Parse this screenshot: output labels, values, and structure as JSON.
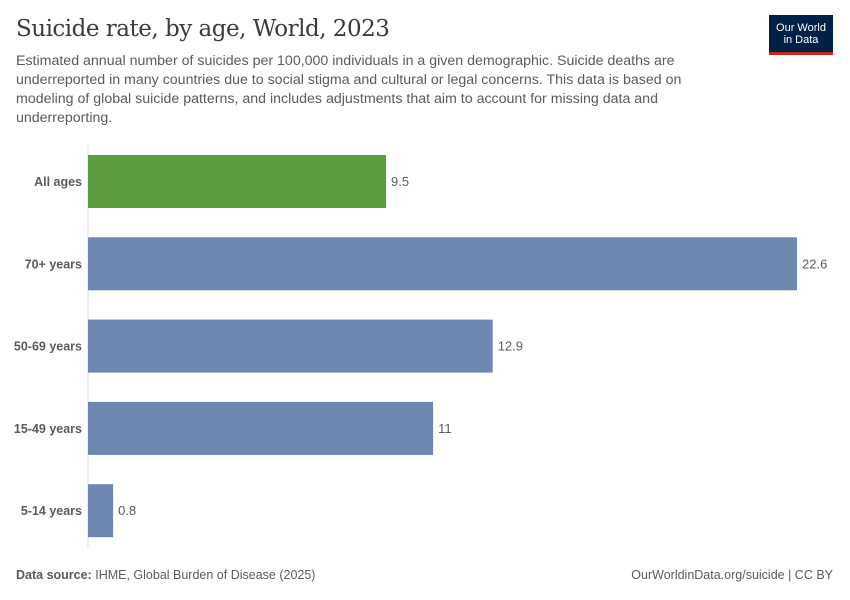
{
  "header": {
    "title": "Suicide rate, by age, World, 2023",
    "subtitle": "Estimated annual number of suicides per 100,000 individuals in a given demographic. Suicide deaths are underreported in many countries due to social stigma and cultural or legal concerns. This data is based on modeling of global suicide patterns, and includes adjustments that aim to account for missing data and underreporting.",
    "logo": {
      "line1": "Our World",
      "line2": "in Data"
    }
  },
  "footer": {
    "source_label": "Data source:",
    "source": "IHME, Global Burden of Disease (2025)",
    "credit": "OurWorldinData.org/suicide | CC BY"
  },
  "chart_data": {
    "type": "bar",
    "orientation": "horizontal",
    "title": "Suicide rate, by age, World, 2023",
    "categories": [
      "All ages",
      "70+ years",
      "50-69 years",
      "15-49 years",
      "5-14 years"
    ],
    "values": [
      9.5,
      22.6,
      12.9,
      11,
      0.8
    ],
    "value_labels": [
      "9.5",
      "22.6",
      "12.9",
      "11",
      "0.8"
    ],
    "colors": [
      "#5b9e3f",
      "#6d87b1",
      "#6d87b1",
      "#6d87b1",
      "#6d87b1"
    ],
    "xlim": [
      0,
      22.6
    ],
    "grid": false
  }
}
